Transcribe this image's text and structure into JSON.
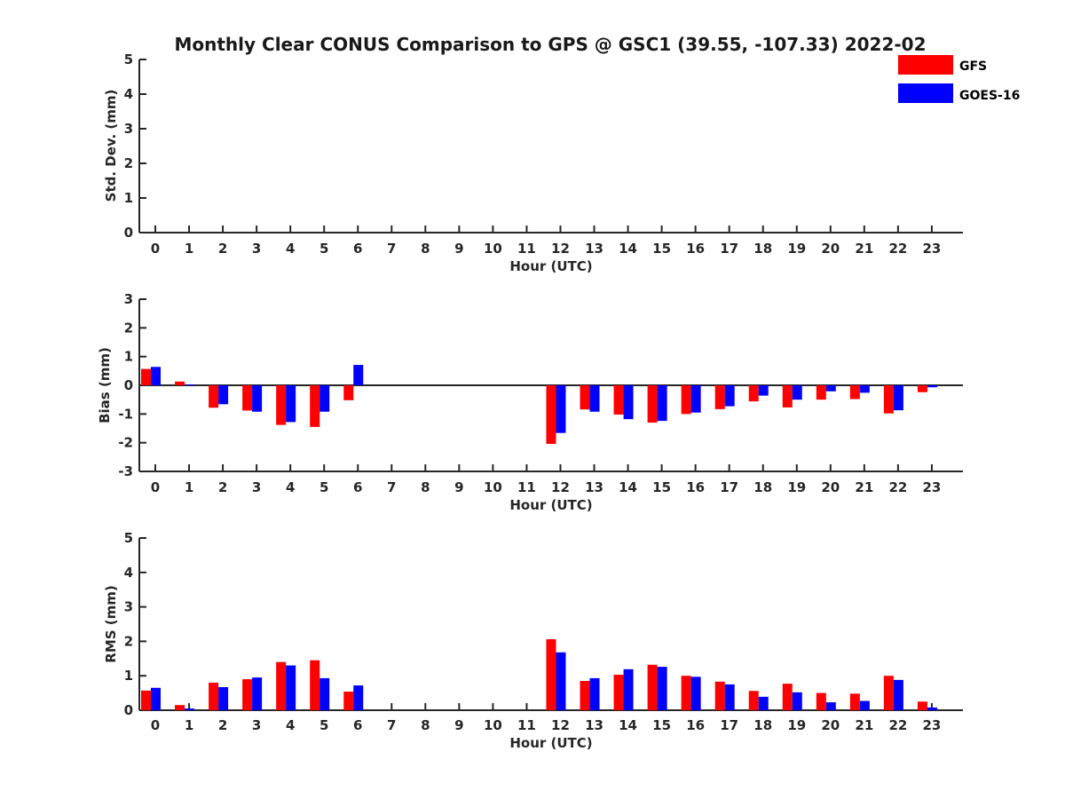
{
  "chart_data": {
    "type": "bar",
    "title": "Monthly Clear CONUS Comparison to GPS @ GSC1 (39.55, -107.33) 2022-02",
    "legend": {
      "placement": "top-right",
      "entries": [
        {
          "name": "GFS",
          "color": "#ff0000"
        },
        {
          "name": "GOES-16",
          "color": "#0000ff"
        }
      ]
    },
    "categories": [
      "0",
      "1",
      "2",
      "3",
      "4",
      "5",
      "6",
      "7",
      "8",
      "9",
      "10",
      "11",
      "12",
      "13",
      "14",
      "15",
      "16",
      "17",
      "18",
      "19",
      "20",
      "21",
      "22",
      "23"
    ],
    "panels": [
      {
        "name": "stddev",
        "xlabel": "Hour (UTC)",
        "ylabel": "Std. Dev. (mm)",
        "ylim": [
          0,
          5
        ],
        "yticks": [
          0,
          1,
          2,
          3,
          4,
          5
        ],
        "series": [
          {
            "name": "GFS",
            "color": "#ff0000",
            "values": [
              null,
              null,
              null,
              null,
              null,
              null,
              null,
              null,
              null,
              null,
              null,
              null,
              null,
              null,
              null,
              null,
              null,
              null,
              null,
              null,
              null,
              null,
              null,
              null
            ]
          },
          {
            "name": "GOES-16",
            "color": "#0000ff",
            "values": [
              null,
              null,
              null,
              null,
              null,
              null,
              null,
              null,
              null,
              null,
              null,
              null,
              null,
              null,
              null,
              null,
              null,
              null,
              null,
              null,
              null,
              null,
              null,
              null
            ]
          }
        ]
      },
      {
        "name": "bias",
        "xlabel": "Hour (UTC)",
        "ylabel": "Bias (mm)",
        "ylim": [
          -3,
          3
        ],
        "yticks": [
          -3,
          -2,
          -1,
          0,
          1,
          2,
          3
        ],
        "series": [
          {
            "name": "GFS",
            "color": "#ff0000",
            "values": [
              0.57,
              0.13,
              -0.78,
              -0.88,
              -1.38,
              -1.45,
              -0.52,
              null,
              null,
              null,
              null,
              null,
              -2.04,
              -0.84,
              -1.02,
              -1.3,
              -1.0,
              -0.83,
              -0.56,
              -0.77,
              -0.5,
              -0.48,
              -0.98,
              -0.24
            ]
          },
          {
            "name": "GOES-16",
            "color": "#0000ff",
            "values": [
              0.64,
              0.03,
              -0.66,
              -0.92,
              -1.28,
              -0.92,
              0.71,
              null,
              null,
              null,
              null,
              null,
              -1.66,
              -0.92,
              -1.18,
              -1.24,
              -0.95,
              -0.73,
              -0.36,
              -0.5,
              -0.21,
              -0.26,
              -0.87,
              -0.07
            ]
          }
        ]
      },
      {
        "name": "rms",
        "xlabel": "Hour (UTC)",
        "ylabel": "RMS (mm)",
        "ylim": [
          0,
          5
        ],
        "yticks": [
          0,
          1,
          2,
          3,
          4,
          5
        ],
        "series": [
          {
            "name": "GFS",
            "color": "#ff0000",
            "values": [
              0.57,
              0.15,
              0.8,
              0.9,
              1.4,
              1.45,
              0.54,
              null,
              null,
              null,
              null,
              null,
              2.06,
              0.85,
              1.03,
              1.32,
              1.0,
              0.83,
              0.56,
              0.77,
              0.5,
              0.48,
              1.0,
              0.25
            ]
          },
          {
            "name": "GOES-16",
            "color": "#0000ff",
            "values": [
              0.65,
              0.05,
              0.67,
              0.95,
              1.3,
              0.93,
              0.72,
              null,
              null,
              null,
              null,
              null,
              1.68,
              0.93,
              1.19,
              1.26,
              0.97,
              0.75,
              0.39,
              0.52,
              0.23,
              0.27,
              0.88,
              0.08
            ]
          }
        ]
      }
    ]
  }
}
